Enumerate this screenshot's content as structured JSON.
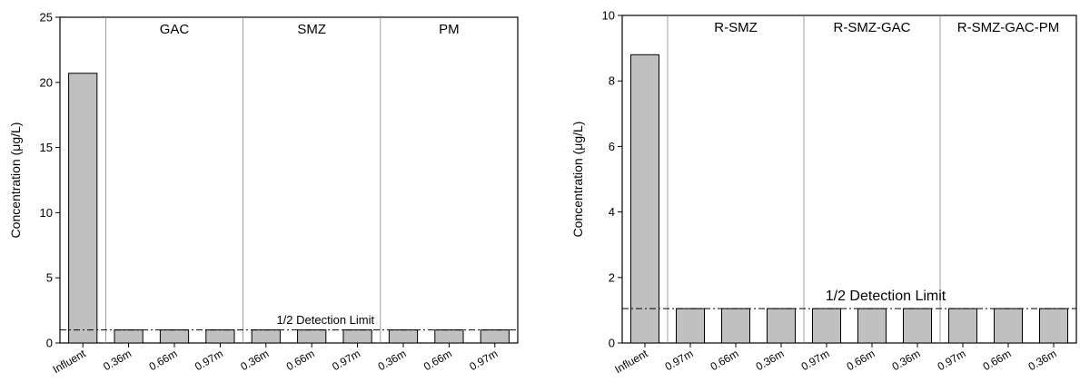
{
  "chart_data": [
    {
      "type": "bar",
      "ylabel": "Concentration (μg/L)",
      "ylim": [
        0,
        25
      ],
      "yticks": [
        0,
        5,
        10,
        15,
        20,
        25
      ],
      "categories": [
        "Influent",
        "0.36m",
        "0.66m",
        "0.97m",
        "0.36m",
        "0.66m",
        "0.97m",
        "0.36m",
        "0.66m",
        "0.97m"
      ],
      "values": [
        20.7,
        1.0,
        1.0,
        1.0,
        1.0,
        1.0,
        1.0,
        1.0,
        1.0,
        1.0
      ],
      "groups": [
        {
          "label": "GAC",
          "start": 1,
          "end": 3
        },
        {
          "label": "SMZ",
          "start": 4,
          "end": 6
        },
        {
          "label": "PM",
          "start": 7,
          "end": 9
        }
      ],
      "reference_line": {
        "label": "1/2 Detection Limit",
        "value": 1.0
      },
      "bar_color": "#c0c0c0",
      "grid": false
    },
    {
      "type": "bar",
      "ylabel": "Concentration (μg/L)",
      "ylim": [
        0,
        10
      ],
      "yticks": [
        0,
        2,
        4,
        6,
        8,
        10
      ],
      "categories": [
        "Influent",
        "0.97m",
        "0.66m",
        "0.36m",
        "0.97m",
        "0.66m",
        "0.36m",
        "0.97m",
        "0.66m",
        "0.36m"
      ],
      "values": [
        8.8,
        1.05,
        1.05,
        1.05,
        1.05,
        1.05,
        1.05,
        1.05,
        1.05,
        1.05
      ],
      "groups": [
        {
          "label": "R-SMZ",
          "start": 1,
          "end": 3
        },
        {
          "label": "R-SMZ-GAC",
          "start": 4,
          "end": 6
        },
        {
          "label": "R-SMZ-GAC-PM",
          "start": 7,
          "end": 9
        }
      ],
      "reference_line": {
        "label": "1/2 Detection Limit",
        "value": 1.05
      },
      "bar_color": "#c0c0c0",
      "grid": false
    }
  ]
}
